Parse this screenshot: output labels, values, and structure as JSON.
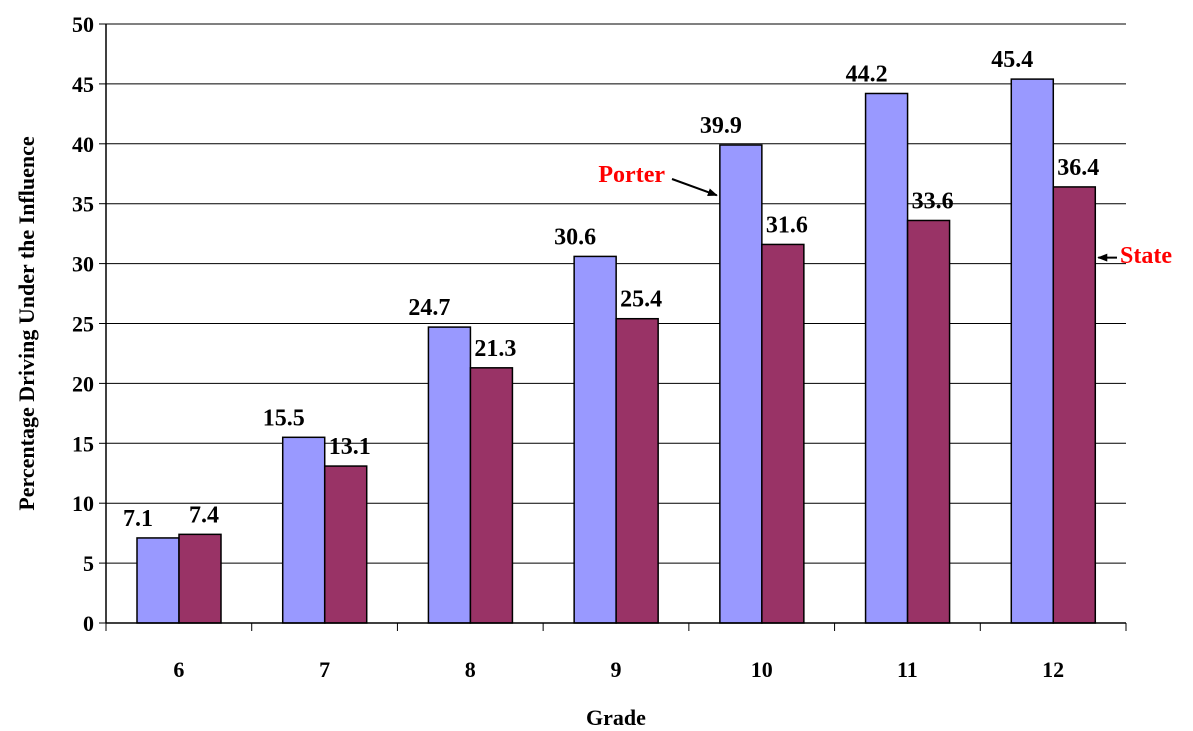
{
  "chart_data": {
    "type": "bar",
    "title": "",
    "xlabel": "Grade",
    "ylabel": "Percentage Driving Under the Influence",
    "ylim": [
      0,
      50
    ],
    "yticks": [
      0,
      5,
      10,
      15,
      20,
      25,
      30,
      35,
      40,
      45,
      50
    ],
    "categories": [
      "6",
      "7",
      "8",
      "9",
      "10",
      "11",
      "12"
    ],
    "grid": true,
    "series": [
      {
        "name": "Porter",
        "values": [
          7.1,
          15.5,
          24.7,
          30.6,
          39.9,
          44.2,
          45.4
        ],
        "labels": [
          "7.1",
          "15.5",
          "24.7",
          "30.6",
          "39.9",
          "44.2",
          "45.4"
        ],
        "color": "#9999ff"
      },
      {
        "name": "State",
        "values": [
          7.4,
          13.1,
          21.3,
          25.4,
          31.6,
          33.6,
          36.4
        ],
        "labels": [
          "7.4",
          "13.1",
          "21.3",
          "25.4",
          "31.6",
          "33.6",
          "36.4"
        ],
        "color": "#993366"
      }
    ],
    "callouts": [
      {
        "text": "Porter",
        "series": 0,
        "category": 4,
        "color": "#ff0000"
      },
      {
        "text": "State",
        "series": 1,
        "category": 6,
        "color": "#ff0000"
      }
    ]
  }
}
